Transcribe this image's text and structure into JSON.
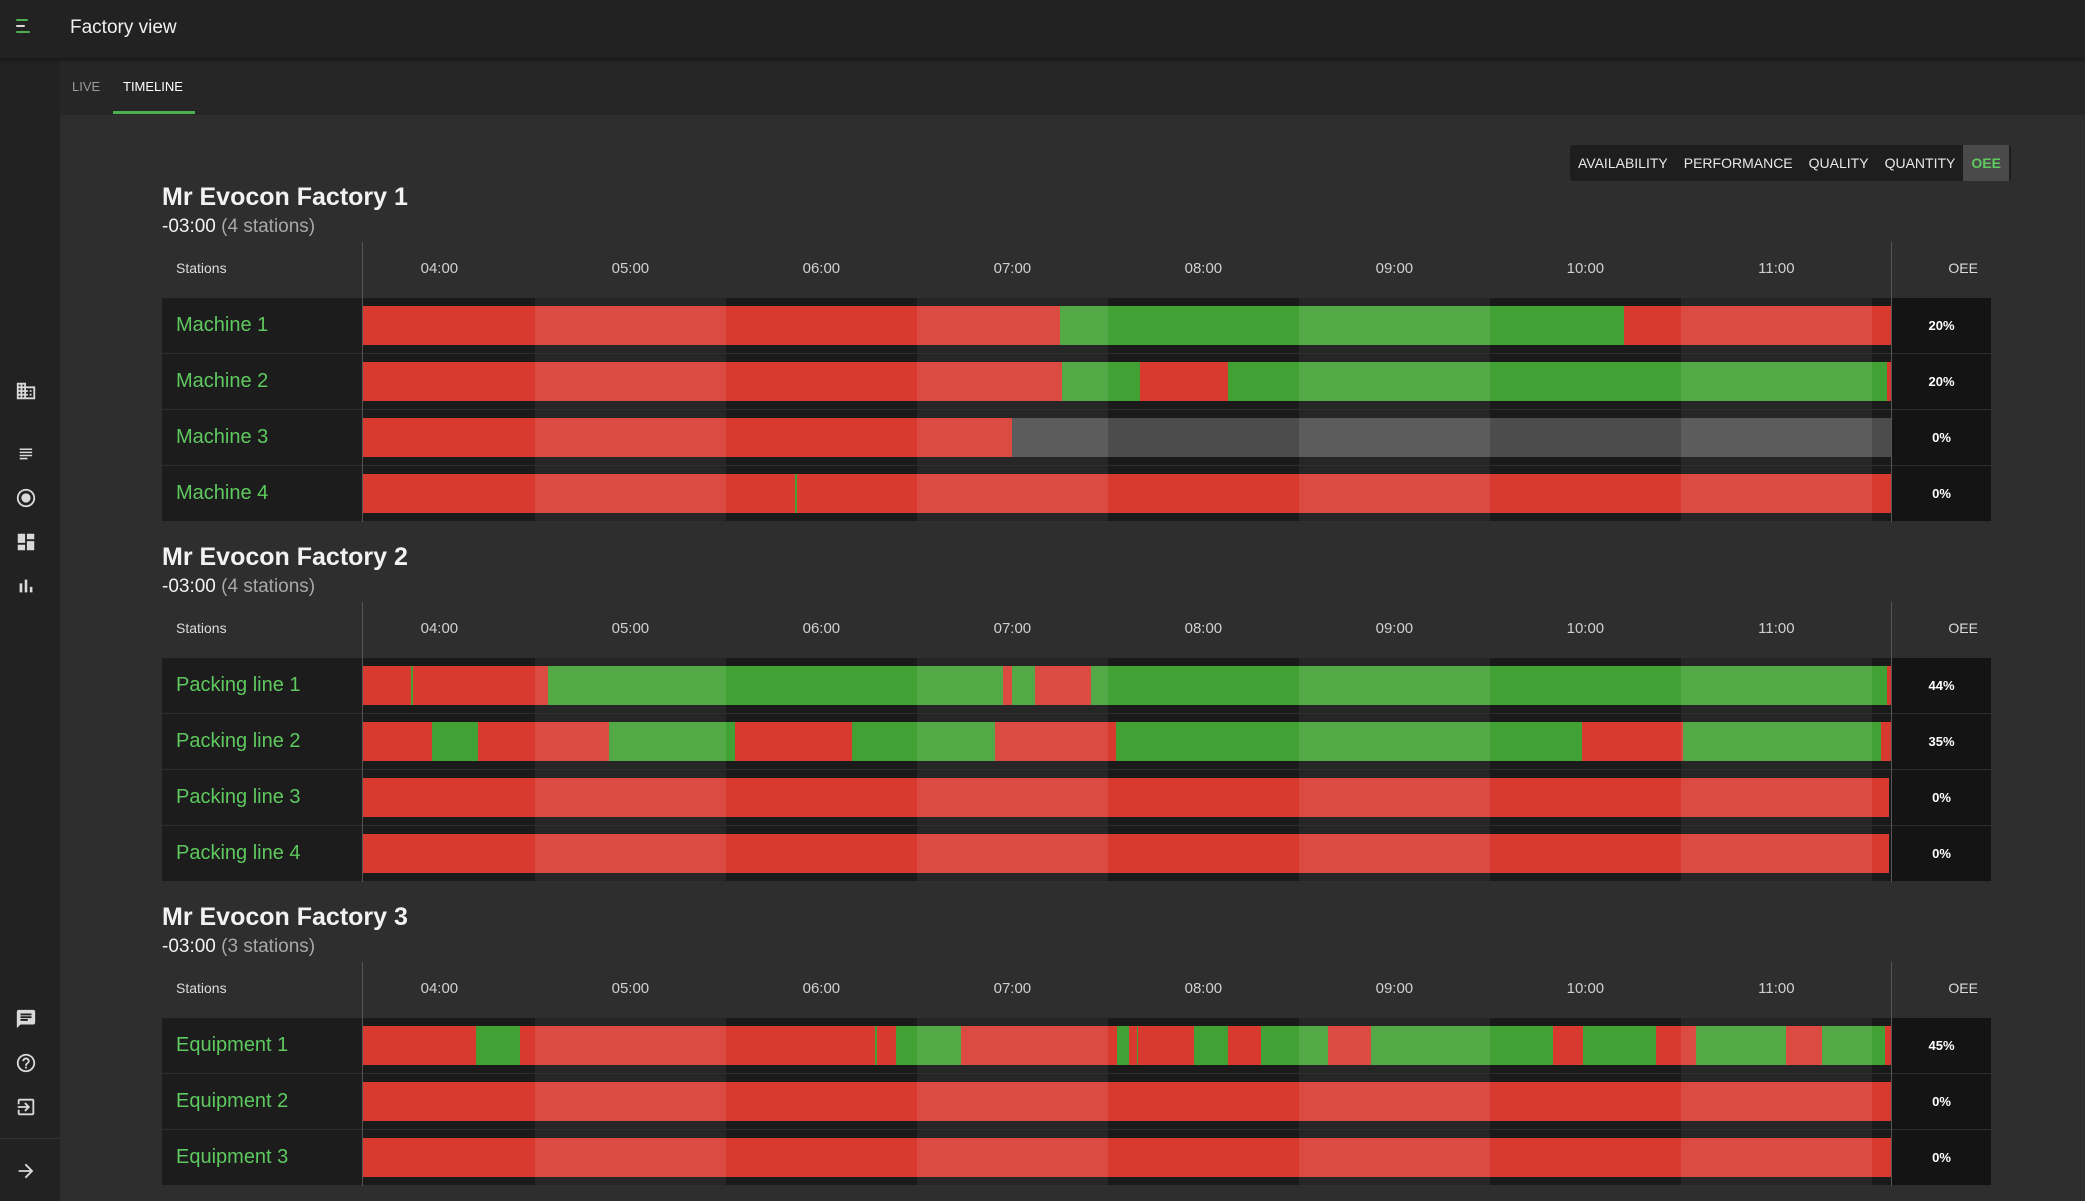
{
  "app": {
    "title": "Factory view"
  },
  "tabs": [
    {
      "label": "LIVE",
      "active": false
    },
    {
      "label": "TIMELINE",
      "active": true
    }
  ],
  "metrics": [
    {
      "label": "AVAILABILITY",
      "active": false
    },
    {
      "label": "PERFORMANCE",
      "active": false
    },
    {
      "label": "QUALITY",
      "active": false
    },
    {
      "label": "QUANTITY",
      "active": false
    },
    {
      "label": "OEE",
      "active": true
    }
  ],
  "sidebar": {
    "icons": [
      "factory-icon",
      "list-icon",
      "target-icon",
      "dashboard-icon",
      "bar-chart-icon",
      "chat-icon",
      "help-icon",
      "logout-icon",
      "expand-arrow-icon"
    ]
  },
  "colors": {
    "bad": "#d83a30",
    "good": "#42a134",
    "idle": "#4c4c4c",
    "accent": "#4caf50"
  },
  "timeline": {
    "stations_header": "Stations",
    "oee_header": "OEE",
    "start_hour": 3.6,
    "end_hour": 11.6,
    "ticks": [
      "04:00",
      "05:00",
      "06:00",
      "07:00",
      "08:00",
      "09:00",
      "10:00",
      "11:00"
    ],
    "shaded_intervals": [
      [
        4.5,
        5.5
      ],
      [
        6.5,
        7.5
      ],
      [
        8.5,
        9.5
      ],
      [
        10.5,
        11.5
      ]
    ]
  },
  "factories": [
    {
      "name": "Mr Evocon Factory 1",
      "offset": "-03:00",
      "station_count": "(4 stations)",
      "stations": [
        {
          "name": "Machine 1",
          "oee": "20%",
          "segments": [
            [
              "bad",
              3.6,
              7.25
            ],
            [
              "good",
              7.25,
              10.2
            ],
            [
              "bad",
              10.2,
              11.6
            ]
          ]
        },
        {
          "name": "Machine 2",
          "oee": "20%",
          "segments": [
            [
              "bad",
              3.6,
              7.26
            ],
            [
              "good",
              7.26,
              7.67
            ],
            [
              "bad",
              7.67,
              8.13
            ],
            [
              "good",
              8.13,
              11.58
            ],
            [
              "bad",
              11.58,
              11.6
            ]
          ]
        },
        {
          "name": "Machine 3",
          "oee": "0%",
          "segments": [
            [
              "bad",
              3.6,
              7.0
            ],
            [
              "idle",
              7.0,
              11.6
            ]
          ]
        },
        {
          "name": "Machine 4",
          "oee": "0%",
          "segments": [
            [
              "bad",
              3.6,
              5.86
            ],
            [
              "good",
              5.86,
              5.87
            ],
            [
              "bad",
              5.87,
              11.6
            ]
          ]
        }
      ]
    },
    {
      "name": "Mr Evocon Factory 2",
      "offset": "-03:00",
      "station_count": "(4 stations)",
      "stations": [
        {
          "name": "Packing line 1",
          "oee": "44%",
          "segments": [
            [
              "bad",
              3.6,
              3.85
            ],
            [
              "good",
              3.85,
              3.86
            ],
            [
              "bad",
              3.86,
              4.57
            ],
            [
              "good",
              4.57,
              6.95
            ],
            [
              "bad",
              6.95,
              7.0
            ],
            [
              "good",
              7.0,
              7.12
            ],
            [
              "bad",
              7.12,
              7.41
            ],
            [
              "good",
              7.41,
              11.58
            ],
            [
              "bad",
              11.58,
              11.6
            ]
          ]
        },
        {
          "name": "Packing line 2",
          "oee": "35%",
          "segments": [
            [
              "bad",
              3.6,
              3.96
            ],
            [
              "good",
              3.96,
              4.2
            ],
            [
              "bad",
              4.2,
              4.89
            ],
            [
              "good",
              4.89,
              5.55
            ],
            [
              "bad",
              5.55,
              6.16
            ],
            [
              "good",
              6.16,
              6.91
            ],
            [
              "bad",
              6.91,
              7.54
            ],
            [
              "good",
              7.54,
              9.98
            ],
            [
              "bad",
              9.98,
              10.51
            ],
            [
              "good",
              10.51,
              11.55
            ],
            [
              "bad",
              11.55,
              11.6
            ]
          ]
        },
        {
          "name": "Packing line 3",
          "oee": "0%",
          "segments": [
            [
              "bad",
              3.6,
              11.59
            ]
          ]
        },
        {
          "name": "Packing line 4",
          "oee": "0%",
          "segments": [
            [
              "bad",
              3.6,
              11.59
            ]
          ]
        }
      ]
    },
    {
      "name": "Mr Evocon Factory 3",
      "offset": "-03:00",
      "station_count": "(3 stations)",
      "stations": [
        {
          "name": "Equipment 1",
          "oee": "45%",
          "segments": [
            [
              "bad",
              3.6,
              4.19
            ],
            [
              "good",
              4.19,
              4.42
            ],
            [
              "bad",
              4.42,
              6.28
            ],
            [
              "good",
              6.28,
              6.29
            ],
            [
              "bad",
              6.29,
              6.39
            ],
            [
              "good",
              6.39,
              6.73
            ],
            [
              "bad",
              6.73,
              7.55
            ],
            [
              "good",
              7.55,
              7.61
            ],
            [
              "bad",
              7.61,
              7.65
            ],
            [
              "good",
              7.65,
              7.66
            ],
            [
              "bad",
              7.66,
              7.95
            ],
            [
              "good",
              7.95,
              8.13
            ],
            [
              "bad",
              8.13,
              8.3
            ],
            [
              "good",
              8.3,
              8.65
            ],
            [
              "bad",
              8.65,
              8.88
            ],
            [
              "good",
              8.88,
              9.83
            ],
            [
              "bad",
              9.83,
              9.99
            ],
            [
              "good",
              9.99,
              10.37
            ],
            [
              "bad",
              10.37,
              10.58
            ],
            [
              "good",
              10.58,
              11.05
            ],
            [
              "bad",
              11.05,
              11.24
            ],
            [
              "good",
              11.24,
              11.57
            ],
            [
              "bad",
              11.57,
              11.6
            ]
          ]
        },
        {
          "name": "Equipment 2",
          "oee": "0%",
          "segments": [
            [
              "bad",
              3.6,
              11.6
            ]
          ]
        },
        {
          "name": "Equipment 3",
          "oee": "0%",
          "segments": [
            [
              "bad",
              3.6,
              11.6
            ]
          ]
        }
      ]
    }
  ]
}
